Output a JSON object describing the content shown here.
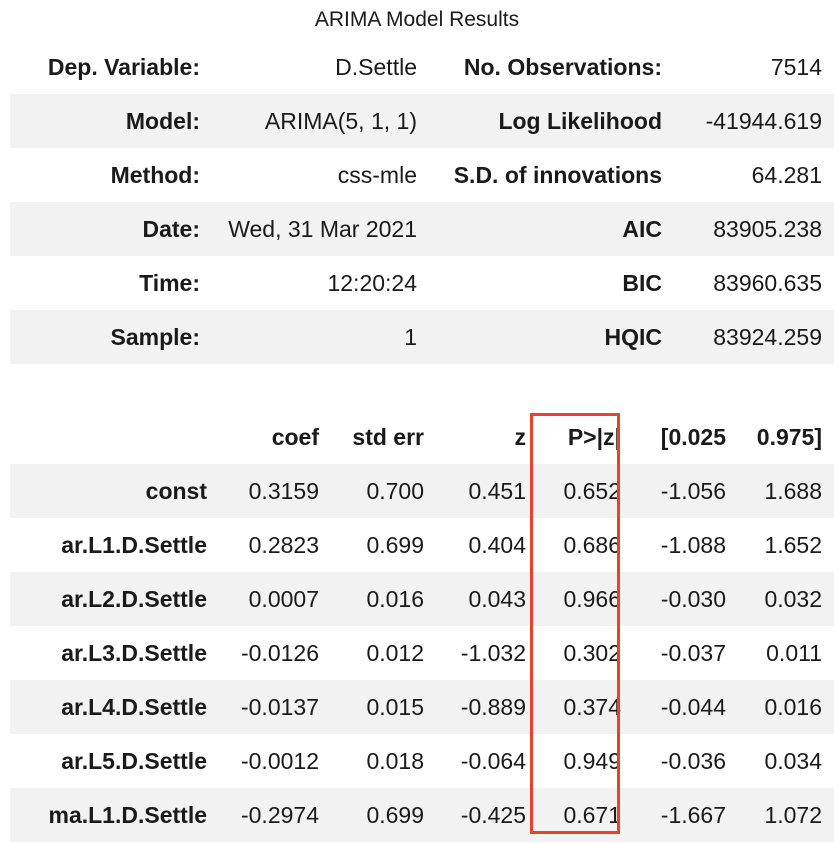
{
  "caption": "ARIMA Model Results",
  "summary": {
    "rows": [
      {
        "l1": "Dep. Variable:",
        "v1": "D.Settle",
        "l2": "No. Observations:",
        "v2": "7514"
      },
      {
        "l1": "Model:",
        "v1": "ARIMA(5, 1, 1)",
        "l2": "Log Likelihood",
        "v2": "-41944.619"
      },
      {
        "l1": "Method:",
        "v1": "css-mle",
        "l2": "S.D. of innovations",
        "v2": "64.281"
      },
      {
        "l1": "Date:",
        "v1": "Wed, 31 Mar 2021",
        "l2": "AIC",
        "v2": "83905.238"
      },
      {
        "l1": "Time:",
        "v1": "12:20:24",
        "l2": "BIC",
        "v2": "83960.635"
      },
      {
        "l1": "Sample:",
        "v1": "1",
        "l2": "HQIC",
        "v2": "83924.259"
      }
    ]
  },
  "coefficients": {
    "headers": [
      "",
      "coef",
      "std err",
      "z",
      "P>|z|",
      "[0.025",
      "0.975]"
    ],
    "rows": [
      [
        "const",
        "0.3159",
        "0.700",
        "0.451",
        "0.652",
        "-1.056",
        "1.688"
      ],
      [
        "ar.L1.D.Settle",
        "0.2823",
        "0.699",
        "0.404",
        "0.686",
        "-1.088",
        "1.652"
      ],
      [
        "ar.L2.D.Settle",
        "0.0007",
        "0.016",
        "0.043",
        "0.966",
        "-0.030",
        "0.032"
      ],
      [
        "ar.L3.D.Settle",
        "-0.0126",
        "0.012",
        "-1.032",
        "0.302",
        "-0.037",
        "0.011"
      ],
      [
        "ar.L4.D.Settle",
        "-0.0137",
        "0.015",
        "-0.889",
        "0.374",
        "-0.044",
        "0.016"
      ],
      [
        "ar.L5.D.Settle",
        "-0.0012",
        "0.018",
        "-0.064",
        "0.949",
        "-0.036",
        "0.034"
      ],
      [
        "ma.L1.D.Settle",
        "-0.2974",
        "0.699",
        "-0.425",
        "0.671",
        "-1.667",
        "1.072"
      ]
    ]
  },
  "highlight_color": "#e8412c"
}
